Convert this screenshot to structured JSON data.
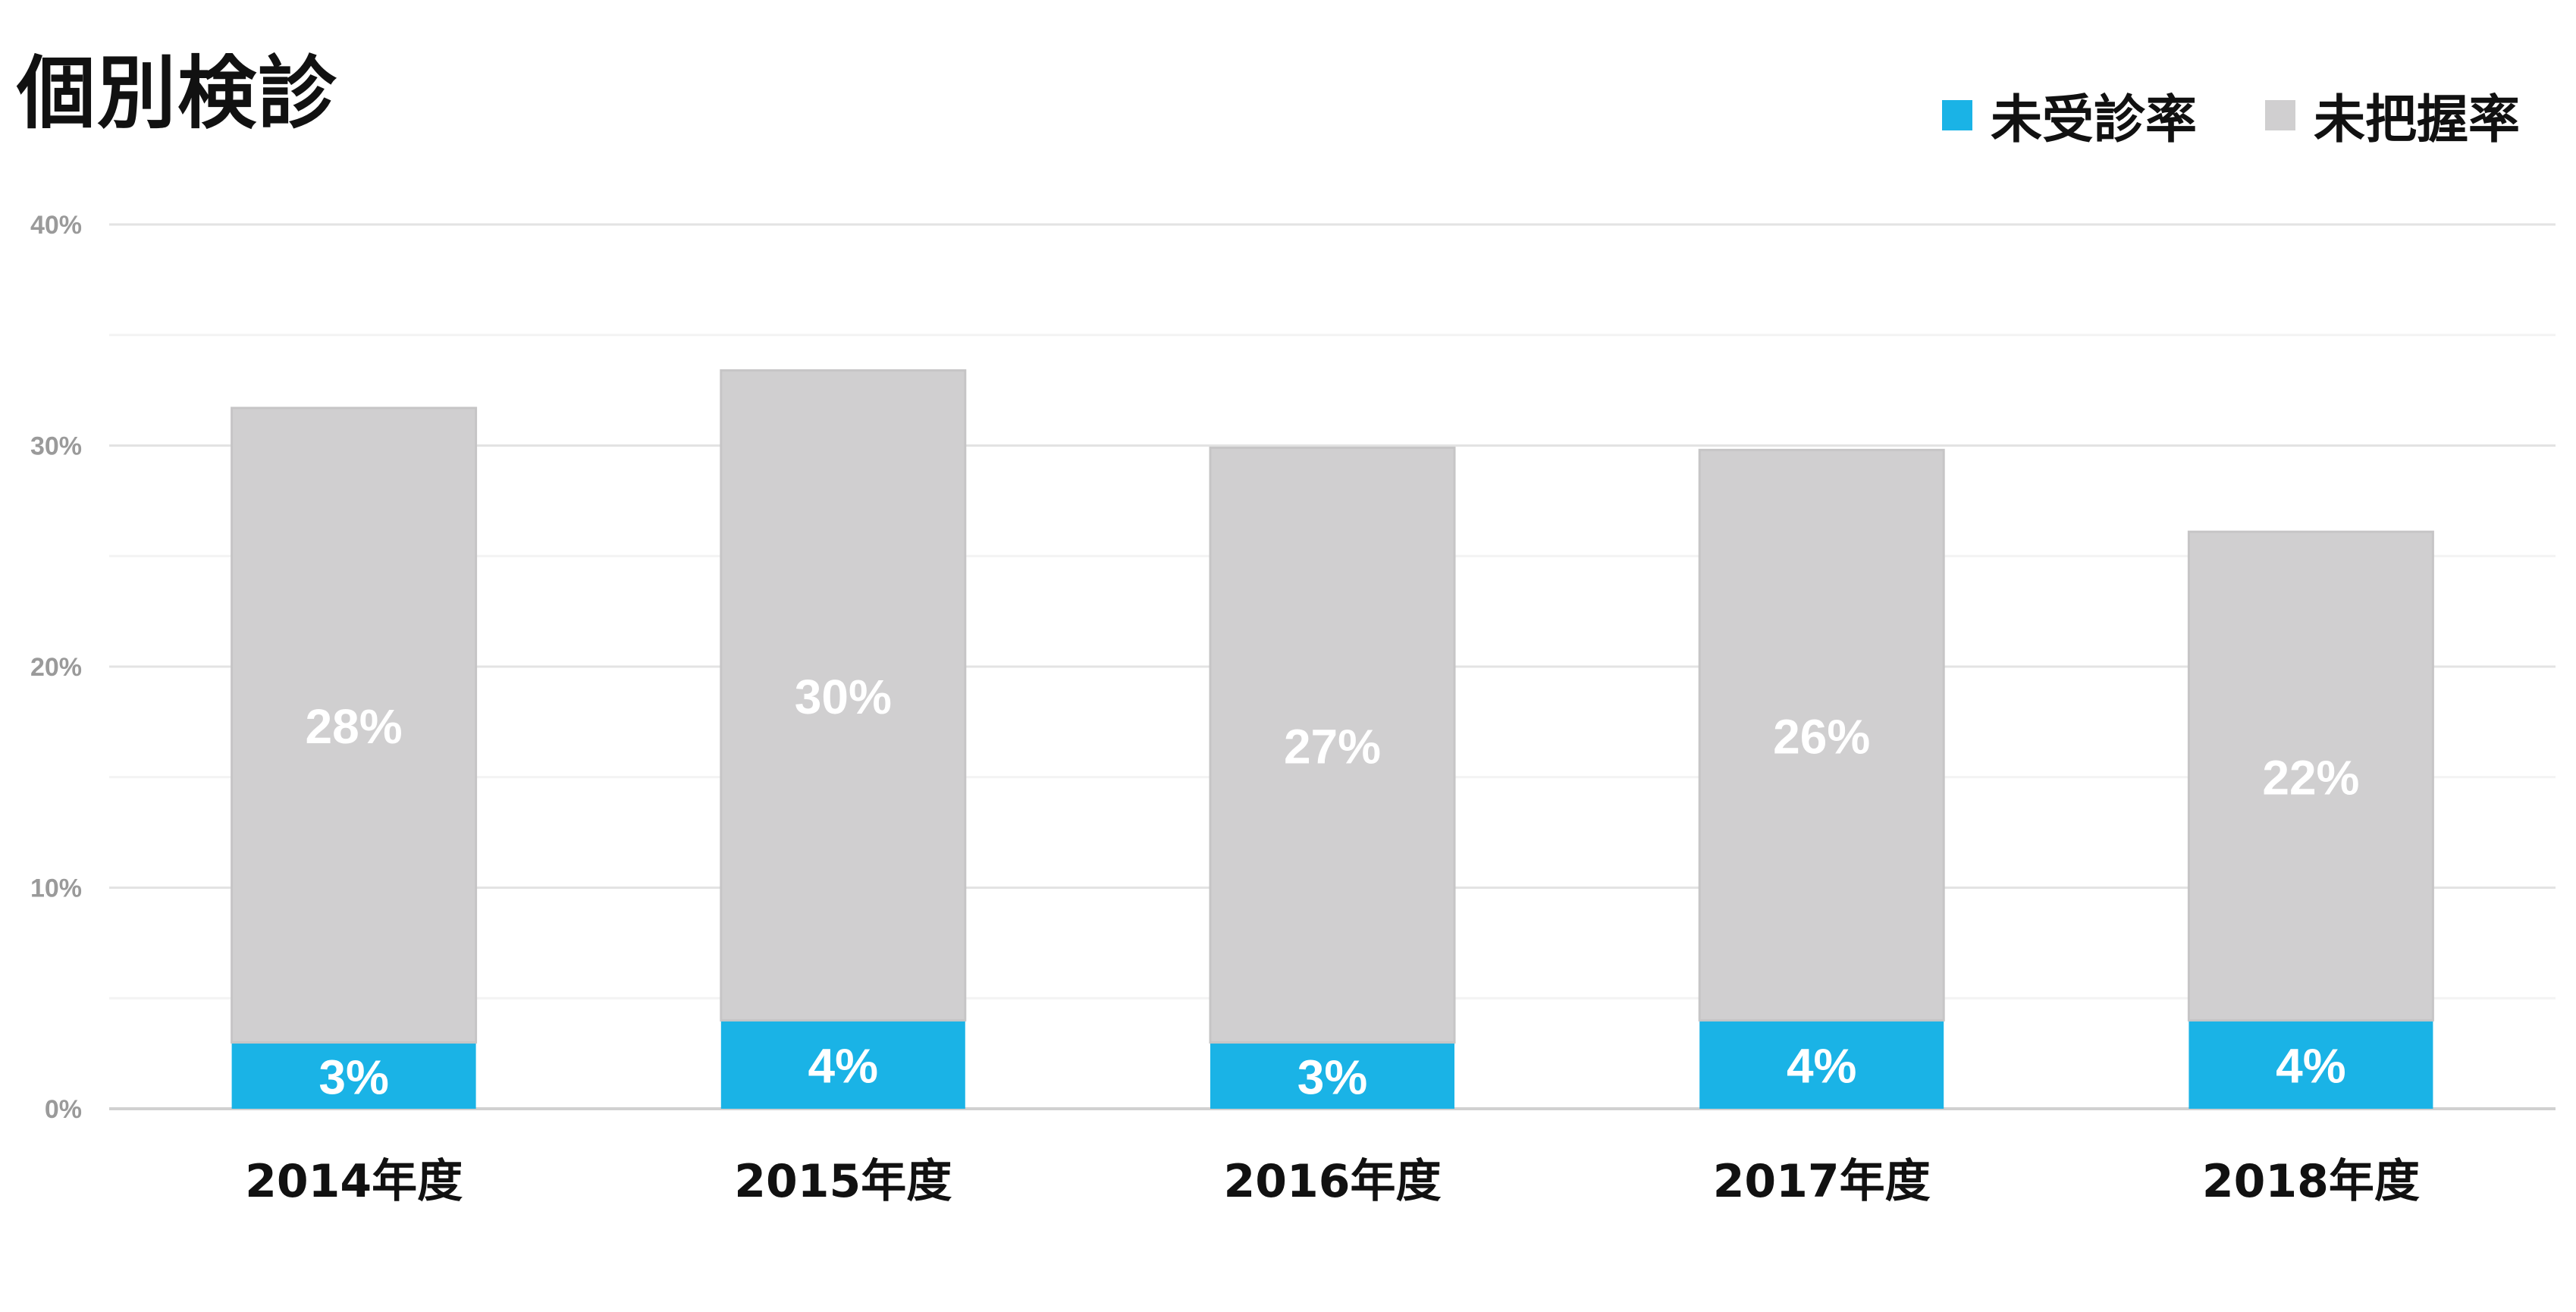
{
  "chart_data": {
    "type": "bar",
    "stacked": true,
    "title": "個別検診",
    "categories": [
      "2014年度",
      "2015年度",
      "2016年度",
      "2017年度",
      "2018年度"
    ],
    "series": [
      {
        "name": "未受診率",
        "values": [
          3,
          4,
          3,
          4,
          4
        ],
        "labels": [
          "3%",
          "4%",
          "3%",
          "4%",
          "4%"
        ],
        "color": "#1ab3e6"
      },
      {
        "name": "未把握率",
        "values": [
          28,
          30,
          27,
          26,
          22
        ],
        "labels": [
          "28%",
          "30%",
          "27%",
          "26%",
          "22%"
        ],
        "color": "#d0cfd0"
      }
    ],
    "display_totals": [
      31.7,
      33.4,
      29.9,
      29.8,
      26.1
    ],
    "ylim": [
      0,
      40
    ],
    "yticks": [
      0,
      10,
      20,
      30,
      40
    ],
    "ytick_labels": [
      "0%",
      "10%",
      "20%",
      "30%",
      "40%"
    ],
    "grid": true,
    "legend_position": "top-right"
  }
}
